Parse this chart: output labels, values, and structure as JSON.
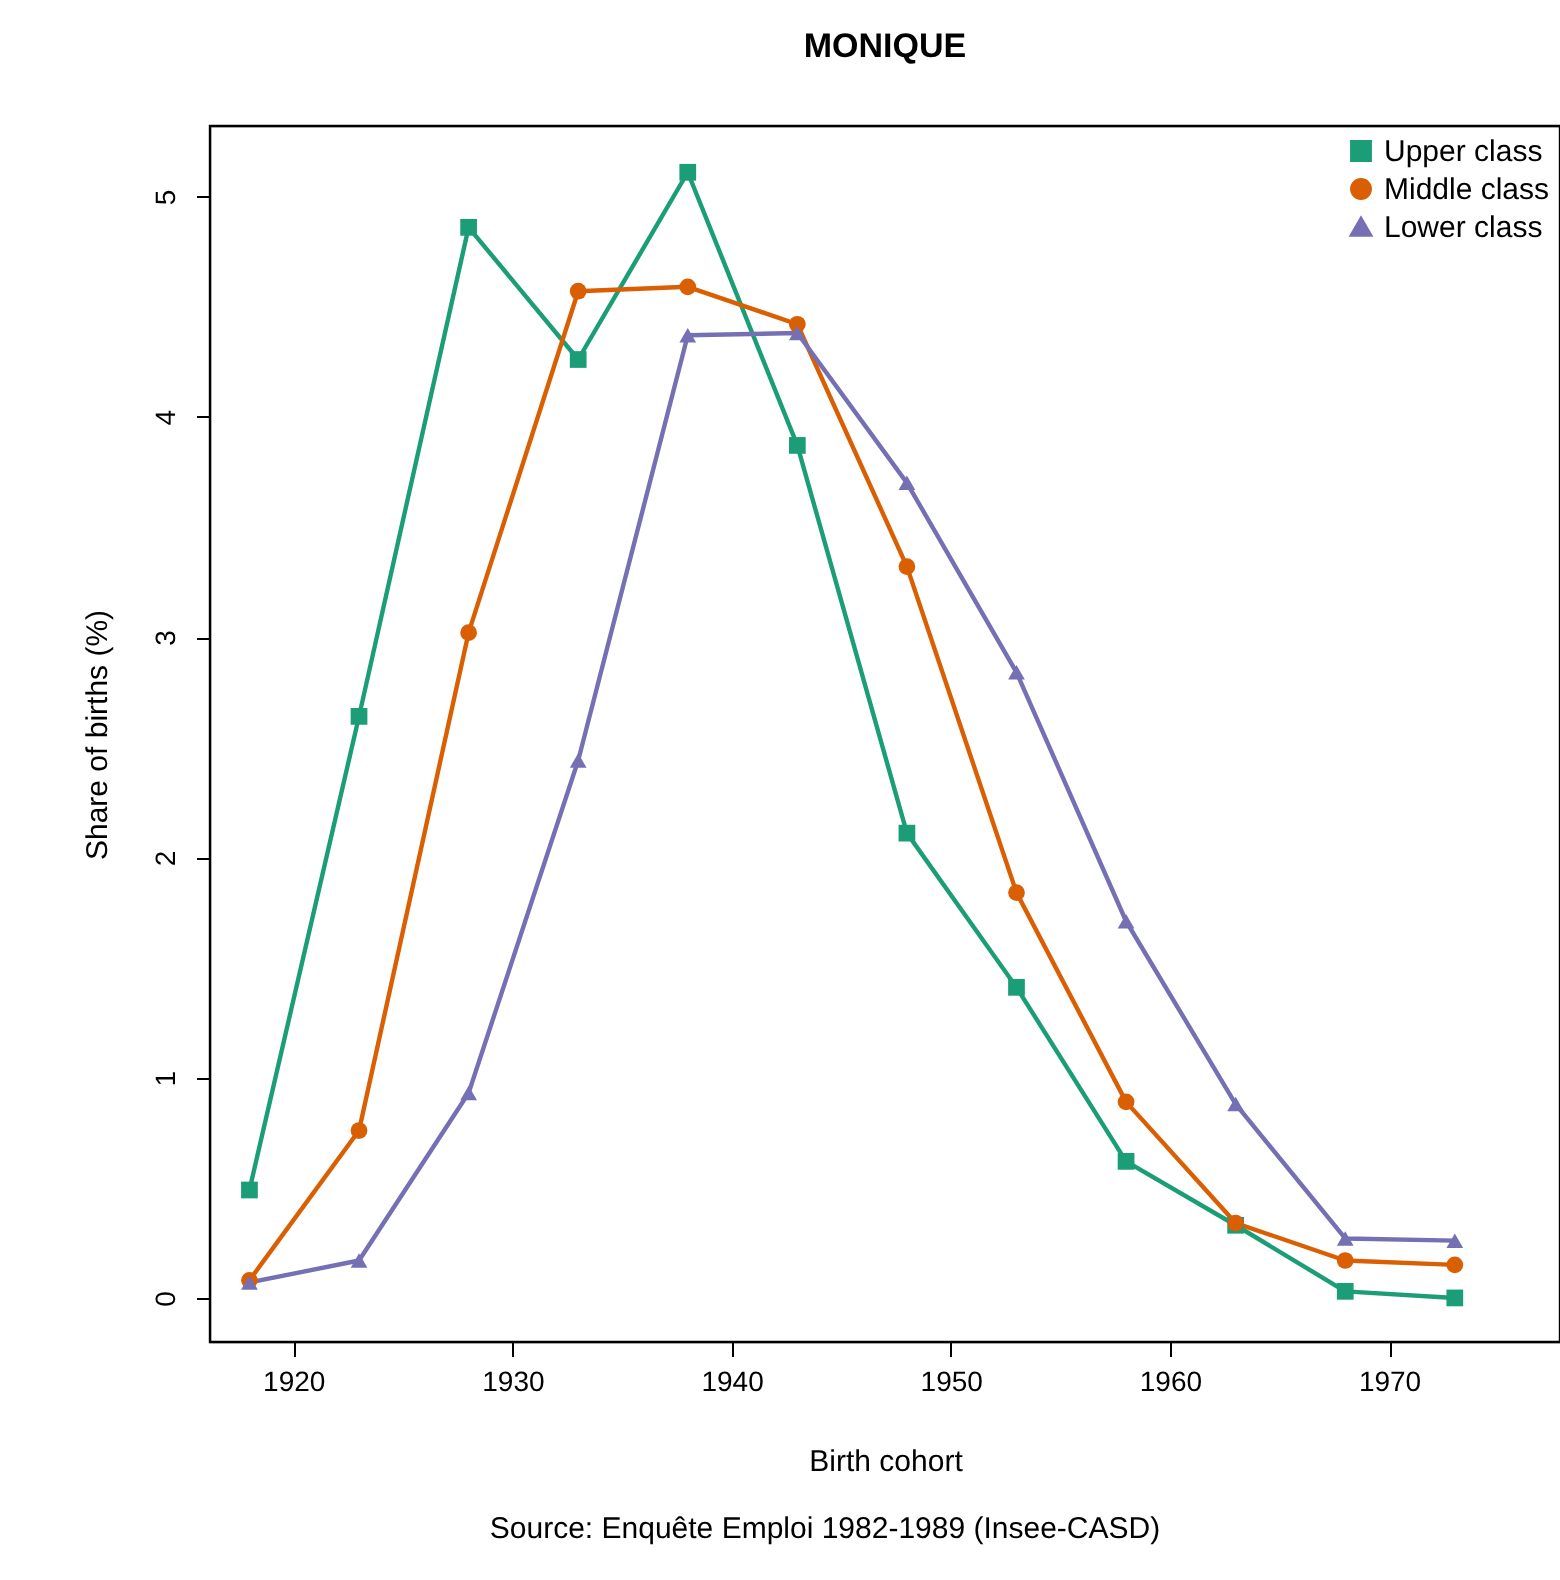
{
  "chart_data": {
    "type": "line",
    "title": "MONIQUE",
    "xlabel": "Birth cohort",
    "ylabel": "Share of births (%)",
    "annotations": [
      "Source: Enquête Emploi 1982-1989 (Insee-CASD)"
    ],
    "x": [
      1918,
      1923,
      1928,
      1933,
      1938,
      1943,
      1948,
      1953,
      1958,
      1963,
      1968,
      1973
    ],
    "series": [
      {
        "name": "Upper class",
        "color": "#1b9e77",
        "marker": "square",
        "values": [
          0.49,
          2.64,
          4.86,
          4.26,
          5.11,
          3.87,
          2.11,
          1.41,
          0.62,
          0.33,
          0.03,
          0.0
        ]
      },
      {
        "name": "Middle class",
        "color": "#d95f02",
        "marker": "circle",
        "values": [
          0.08,
          0.76,
          3.02,
          4.57,
          4.59,
          4.42,
          3.32,
          1.84,
          0.89,
          0.34,
          0.17,
          0.15
        ]
      },
      {
        "name": "Lower class",
        "color": "#7570b3",
        "marker": "triangle",
        "values": [
          0.07,
          0.17,
          0.93,
          2.44,
          4.37,
          4.38,
          3.7,
          2.84,
          1.71,
          0.88,
          0.27,
          0.26
        ]
      }
    ],
    "xlim": [
      1916.2,
      1977.8
    ],
    "ylim": [
      -0.2,
      5.32
    ],
    "xticks": [
      1920,
      1930,
      1940,
      1950,
      1960,
      1970
    ],
    "yticks": [
      0,
      1,
      2,
      3,
      4,
      5
    ],
    "grid": false,
    "legend": "top right",
    "line_style": "solid"
  }
}
